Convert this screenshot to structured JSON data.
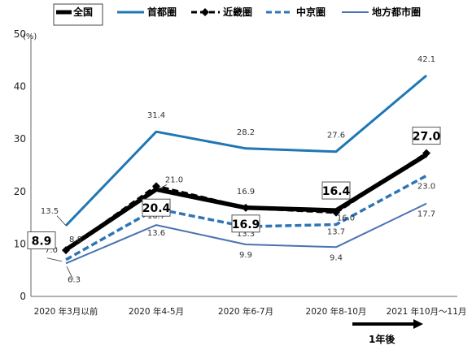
{
  "chart_data": {
    "type": "line",
    "ylabel_unit": "(%)",
    "ylim": [
      0,
      50
    ],
    "yticks": [
      0,
      10,
      20,
      30,
      40,
      50
    ],
    "categories": [
      "2020 年3月以前",
      "2020 年4-5月",
      "2020 年6-7月",
      "2020 年8-10月",
      "2021 年10月～11月"
    ],
    "series": [
      {
        "name": "全国",
        "values": [
          8.9,
          20.4,
          16.9,
          16.4,
          27.0
        ],
        "color": "#000000",
        "style": "solid-thick"
      },
      {
        "name": "首都圏",
        "values": [
          13.5,
          31.4,
          28.2,
          27.6,
          42.1
        ],
        "color": "#1f77b4",
        "style": "solid"
      },
      {
        "name": "近畿圏",
        "values": [
          8.8,
          21.0,
          16.9,
          16.0,
          27.3
        ],
        "color": "#000000",
        "style": "dash-diamond"
      },
      {
        "name": "中京圏",
        "values": [
          7.0,
          16.7,
          13.3,
          13.7,
          23.0
        ],
        "color": "#2e75b6",
        "style": "dashed"
      },
      {
        "name": "地方都市圏",
        "values": [
          6.3,
          13.6,
          9.9,
          9.4,
          17.7
        ],
        "color": "#4a72b0",
        "style": "solid-thin"
      }
    ],
    "legend_position": "top",
    "annotation": "1年後"
  }
}
